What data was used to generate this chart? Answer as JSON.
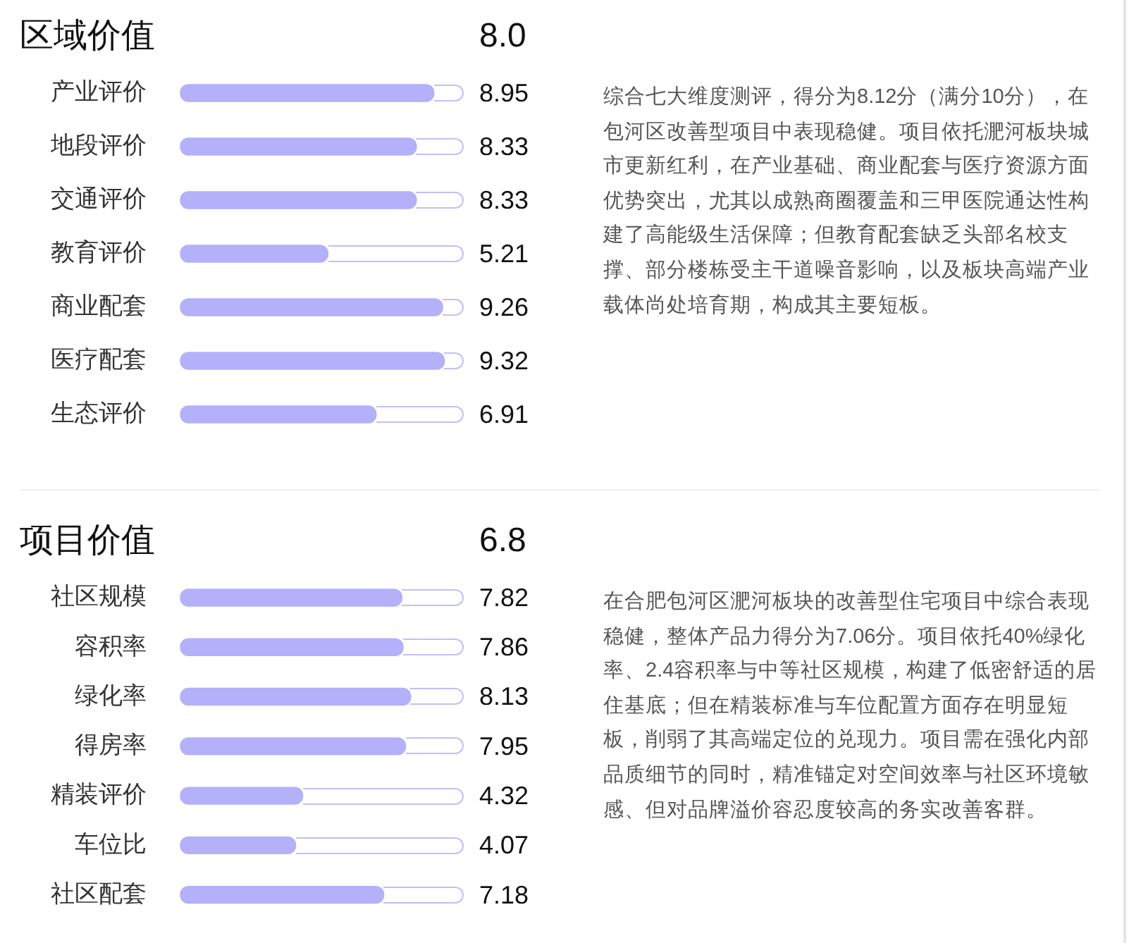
{
  "chart_data": [
    {
      "type": "bar",
      "orientation": "horizontal",
      "title": "区域价值",
      "subtitle": "8.0",
      "categories": [
        "产业评价",
        "地段评价",
        "交通评价",
        "教育评价",
        "商业配套",
        "医疗配套",
        "生态评价"
      ],
      "values": [
        8.95,
        8.33,
        8.33,
        5.21,
        9.26,
        9.32,
        6.91
      ],
      "color": "#b4b0fa",
      "xlim": [
        0,
        10
      ],
      "tick_labels": "y",
      "data_labels": true,
      "annotations": [
        "综合七大维度测评，得分为8.12分（满分10分），在包河区改善型项目中表现稳健。项目依托淝河板块城市更新红利，在产业基础、商业配套与医疗资源方面优势突出，尤其以成熟商圈覆盖和三甲医院通达性构建了高能级生活保障；但教育配套缺乏头部名校支撑、部分楼栋受主干道噪音影响，以及板块高端产业载体尚处培育期，构成其主要短板。"
      ]
    },
    {
      "type": "bar",
      "orientation": "horizontal",
      "title": "项目价值",
      "subtitle": "6.8",
      "categories": [
        "社区规模",
        "容积率",
        "绿化率",
        "得房率",
        "精装评价",
        "车位比",
        "社区配套"
      ],
      "values": [
        7.82,
        7.86,
        8.13,
        7.95,
        4.32,
        4.07,
        7.18
      ],
      "color": "#b4b0fa",
      "xlim": [
        0,
        10
      ],
      "tick_labels": "y",
      "data_labels": true,
      "annotations": [
        "在合肥包河区淝河板块的改善型住宅项目中综合表现稳健，整体产品力得分为7.06分。项目依托40%绿化率、2.4容积率与中等社区规模，构建了低密舒适的居住基底；但在精装标准与车位配置方面存在明显短板，削弱了其高端定位的兑现力。项目需在强化内部品质细节的同时，精准锚定对空间效率与社区环境敏感、但对品牌溢价容忍度较高的务实改善客群。"
      ]
    }
  ]
}
